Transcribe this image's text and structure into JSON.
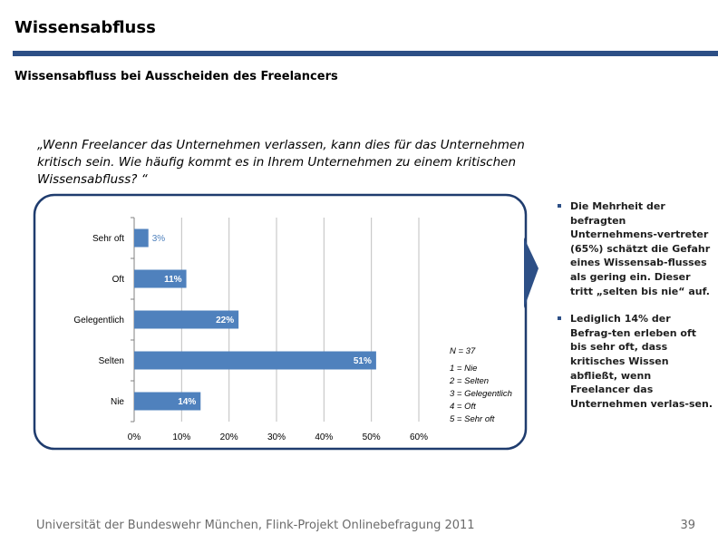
{
  "header": {
    "title": "Wissensabfluss",
    "subtitle": "Wissensabfluss bei Ausscheiden des Freelancers"
  },
  "question": "„Wenn Freelancer das Unternehmen verlassen, kann dies für das Unternehmen kritisch sein. Wie häufig kommt es in Ihrem Unternehmen zu einem kritischen Wissensabfluss? “",
  "chart_data": {
    "type": "bar",
    "orientation": "horizontal",
    "categories": [
      "Sehr oft",
      "Oft",
      "Gelegentlich",
      "Selten",
      "Nie"
    ],
    "values": [
      3,
      11,
      22,
      51,
      14
    ],
    "value_labels": [
      "3%",
      "11%",
      "22%",
      "51%",
      "14%"
    ],
    "xlim": [
      0,
      60
    ],
    "x_ticks": [
      "0%",
      "10%",
      "20%",
      "30%",
      "40%",
      "50%",
      "60%"
    ],
    "grid": true,
    "bar_color": "#4f81bd",
    "legend": {
      "n": "N = 37",
      "items": [
        "1 = Nie",
        "2 = Selten",
        "3 = Gelegentlich",
        "4 = Oft",
        "5 = Sehr oft"
      ]
    }
  },
  "bullets": [
    "Die Mehrheit der befragten Unternehmens-vertreter (65%) schätzt die Gefahr eines Wissensab-flusses als gering ein. Dieser tritt „selten bis nie“ auf.",
    "Lediglich 14% der Befrag-ten erleben oft bis sehr oft, dass kritisches Wissen abfließt, wenn Freelancer das Unternehmen verlas-sen."
  ],
  "footer": {
    "text": "Universität der Bundeswehr München, Flink-Projekt Onlinebefragung  2011",
    "page": "39"
  },
  "colors": {
    "accent": "#2d4f86",
    "frame": "#1f3c6e"
  }
}
